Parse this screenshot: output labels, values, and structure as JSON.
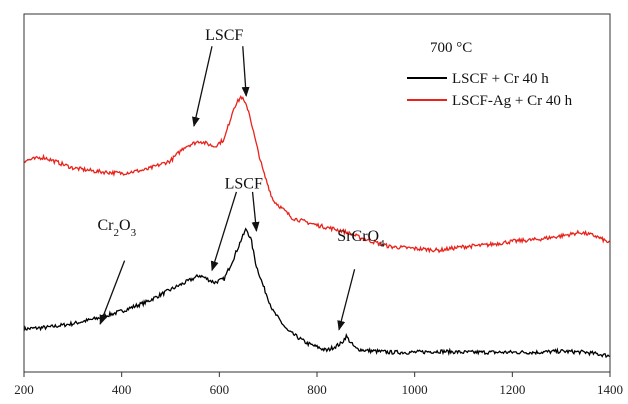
{
  "chart_data": {
    "type": "line",
    "x_ticks": [
      200,
      400,
      600,
      800,
      1000,
      1200,
      1400
    ],
    "xlim": [
      200,
      1400
    ],
    "ylim": [
      0,
      100
    ],
    "y_ticks_shown": false,
    "grid": false,
    "legend": {
      "placement": "top-right",
      "title": "700 °C"
    },
    "series": [
      {
        "name": "LSCF + Cr 40 h",
        "color": "#000000",
        "x": [
          200,
          250,
          300,
          350,
          400,
          450,
          500,
          530,
          560,
          590,
          610,
          630,
          645,
          655,
          665,
          675,
          690,
          710,
          740,
          780,
          820,
          850,
          860,
          870,
          880,
          900,
          950,
          1000,
          1050,
          1100,
          1150,
          1200,
          1250,
          1300,
          1350,
          1400
        ],
        "y": [
          12,
          12.5,
          13.5,
          15,
          17,
          19.5,
          23,
          25,
          27,
          25,
          26,
          32,
          37,
          40,
          37,
          30,
          24,
          17,
          11.5,
          8,
          6,
          8,
          10,
          8,
          6.5,
          6,
          5.5,
          5.5,
          5.8,
          5.5,
          5.5,
          5.5,
          5.5,
          5.8,
          5.5,
          4.5
        ]
      },
      {
        "name": "LSCF-Ag + Cr 40 h",
        "color": "#e8231b",
        "x": [
          200,
          240,
          300,
          350,
          400,
          450,
          500,
          530,
          560,
          590,
          610,
          630,
          645,
          660,
          675,
          690,
          710,
          750,
          800,
          850,
          900,
          950,
          1000,
          1050,
          1100,
          1150,
          1200,
          1250,
          1300,
          1340,
          1370,
          1400
        ],
        "y": [
          59,
          60,
          57,
          56,
          55.5,
          56.5,
          59,
          63,
          64.5,
          63,
          65,
          74,
          77,
          73,
          64,
          56,
          48,
          43,
          41,
          39.5,
          37,
          35,
          34.5,
          34,
          35,
          35.5,
          36.5,
          37,
          38,
          39,
          38,
          36
        ]
      }
    ],
    "annotations": [
      {
        "label": "LSCF",
        "sub": "",
        "suffix": "",
        "text_x": 610,
        "text_y": 92.7,
        "arrows": [
          [
            585,
            91
          ],
          [
            548,
            68.7
          ],
          [
            648,
            91
          ],
          [
            655,
            77.1
          ]
        ]
      },
      {
        "label": "LSCF",
        "sub": "",
        "suffix": "",
        "text_x": 650,
        "text_y": 51.2,
        "arrows": [
          [
            635,
            50.3
          ],
          [
            585,
            28.4
          ],
          [
            668,
            50.3
          ],
          [
            676,
            39.4
          ]
        ]
      },
      {
        "label": "Cr",
        "sub": "2",
        "mid": "O",
        "sub2": "3",
        "text_x": 390,
        "text_y": 39.6,
        "arrows": [
          [
            406,
            31.1
          ],
          [
            356,
            13.4
          ]
        ]
      },
      {
        "label": "SrCrO",
        "sub": "4",
        "text_x": 890,
        "text_y": 36.6,
        "arrows": [
          [
            877,
            28.7
          ],
          [
            845,
            11.8
          ]
        ]
      }
    ]
  }
}
